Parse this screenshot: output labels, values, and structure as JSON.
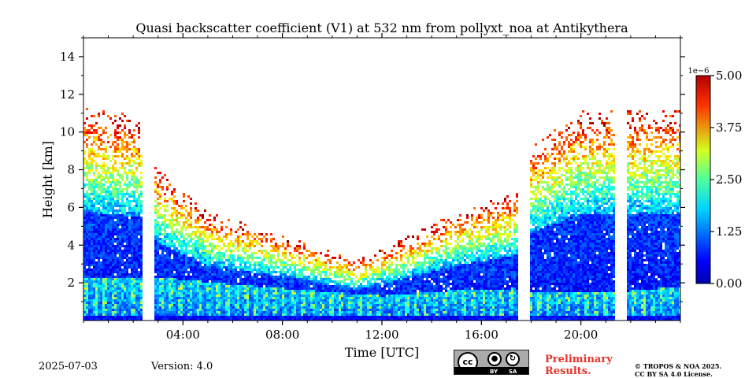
{
  "chart_data": {
    "type": "heatmap",
    "title": "Quasi backscatter coefficient (V1) at 532 nm from pollyxt_noa at Antikythera",
    "xlabel": "Time [UTC]",
    "ylabel": "Height [km]",
    "x_range_hours": [
      0,
      24
    ],
    "ylim_km": [
      0,
      15
    ],
    "x_ticks": [
      {
        "hour": 4,
        "label": "04:00"
      },
      {
        "hour": 8,
        "label": "08:00"
      },
      {
        "hour": 12,
        "label": "12:00"
      },
      {
        "hour": 16,
        "label": "16:00"
      },
      {
        "hour": 20,
        "label": "20:00"
      }
    ],
    "y_ticks": [
      {
        "km": 2,
        "label": "2"
      },
      {
        "km": 4,
        "label": "4"
      },
      {
        "km": 6,
        "label": "6"
      },
      {
        "km": 8,
        "label": "8"
      },
      {
        "km": 10,
        "label": "10"
      },
      {
        "km": 12,
        "label": "12"
      },
      {
        "km": 14,
        "label": "14"
      }
    ],
    "colorbar": {
      "min": 0,
      "max": 5.0,
      "exponent_label": "1e−6",
      "ticks": [
        {
          "value": 0,
          "label": "0.00"
        },
        {
          "value": 1.25,
          "label": "1.25"
        },
        {
          "value": 2.5,
          "label": "2.50"
        },
        {
          "value": 3.75,
          "label": "3.75"
        },
        {
          "value": 5.0,
          "label": "5.00"
        }
      ],
      "colormap": "jet"
    },
    "data_gaps_hours": [
      [
        2.35,
        2.85
      ],
      [
        17.45,
        17.95
      ],
      [
        21.4,
        21.85
      ]
    ],
    "signal_top_km": [
      {
        "hour": 0,
        "km": 10.5
      },
      {
        "hour": 2.3,
        "km": 10.0
      },
      {
        "hour": 3.0,
        "km": 7.5
      },
      {
        "hour": 5.0,
        "km": 5.3
      },
      {
        "hour": 8.0,
        "km": 4.2
      },
      {
        "hour": 11.0,
        "km": 3.0
      },
      {
        "hour": 12.5,
        "km": 3.8
      },
      {
        "hour": 15.0,
        "km": 5.3
      },
      {
        "hour": 17.4,
        "km": 6.3
      },
      {
        "hour": 18.0,
        "km": 8.5
      },
      {
        "hour": 20.0,
        "km": 10.3
      },
      {
        "hour": 24.0,
        "km": 10.3
      }
    ],
    "boundary_layer_top_km": [
      {
        "hour": 0,
        "km": 2.2
      },
      {
        "hour": 2.3,
        "km": 2.2
      },
      {
        "hour": 3.0,
        "km": 2.3
      },
      {
        "hour": 6.0,
        "km": 1.9
      },
      {
        "hour": 10.0,
        "km": 1.5
      },
      {
        "hour": 12.0,
        "km": 1.3
      },
      {
        "hour": 15.0,
        "km": 1.6
      },
      {
        "hour": 17.4,
        "km": 1.7
      },
      {
        "hour": 18.0,
        "km": 1.5
      },
      {
        "hour": 21.4,
        "km": 1.5
      },
      {
        "hour": 24.0,
        "km": 1.8
      }
    ]
  },
  "footer": {
    "date": "2025-07-03",
    "version": "Version: 4.0",
    "preliminary_line1": "Preliminary",
    "preliminary_line2": "Results.",
    "copyright_line1": "© TROPOS & NOA 2025.",
    "copyright_line2": "CC BY SA 4.0 License.",
    "license_badge": {
      "main": "cc",
      "by": "BY",
      "sa": "SA"
    }
  },
  "colors": {
    "preliminary": "#e8332a",
    "background": "#ffffff"
  }
}
